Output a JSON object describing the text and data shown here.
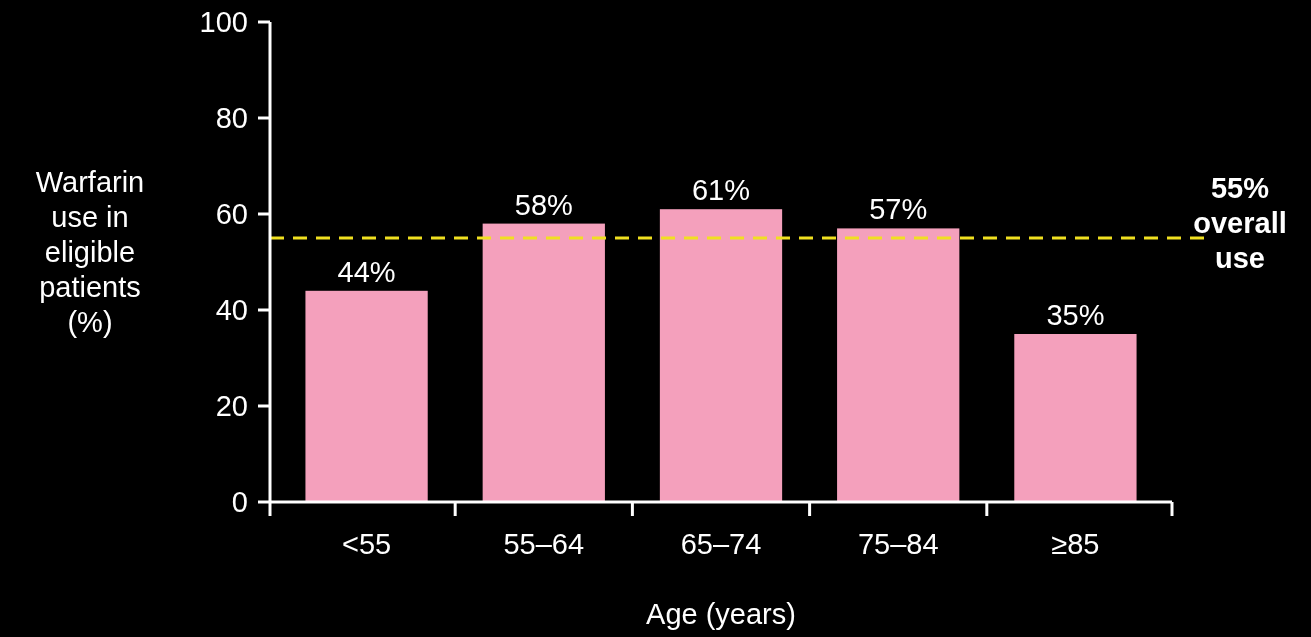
{
  "chart_data": {
    "type": "bar",
    "xlabel": "Age (years)",
    "ylabel": "Warfarin\nuse in\neligible\npatients\n(%)",
    "categories": [
      "<55",
      "55–64",
      "65–74",
      "75–84",
      "≥85"
    ],
    "values": [
      44,
      58,
      61,
      57,
      35
    ],
    "color": "#f4a0bc",
    "value_labels": [
      "44%",
      "58%",
      "61%",
      "57%",
      "35%"
    ],
    "ylim": [
      0,
      100
    ],
    "yticks": [
      0,
      20,
      40,
      60,
      80,
      100
    ],
    "grid": false,
    "ref_lines": [
      {
        "axis": "y",
        "value": 55,
        "label": "55%\noverall\nuse",
        "color": "#f0e020",
        "line_style": "dashed"
      }
    ]
  }
}
